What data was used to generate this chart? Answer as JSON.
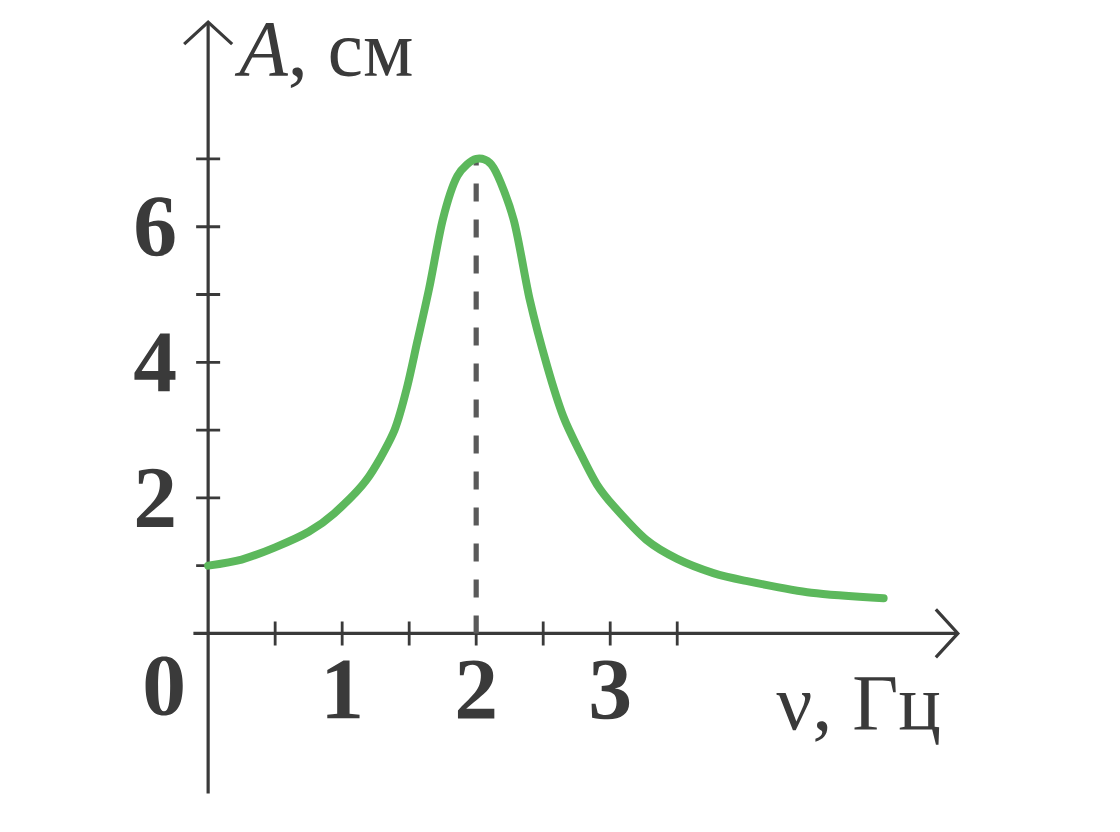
{
  "chart_data": {
    "type": "line",
    "xlabel": "ν, Гц",
    "ylabel": "*A*, см",
    "x": [
      0,
      0.25,
      0.5,
      0.75,
      0.94,
      1.18,
      1.38,
      1.48,
      1.56,
      1.65,
      1.75,
      1.86,
      2.0,
      2.13,
      2.28,
      2.4,
      2.53,
      2.65,
      2.78,
      2.9,
      3.03,
      3.27,
      3.5,
      3.77,
      4.0,
      4.5,
      5.04
    ],
    "values": [
      1.0,
      1.09,
      1.27,
      1.5,
      1.77,
      2.26,
      2.95,
      3.6,
      4.3,
      5.1,
      6.1,
      6.75,
      7.0,
      6.87,
      6.1,
      4.92,
      3.94,
      3.2,
      2.65,
      2.2,
      1.87,
      1.38,
      1.1,
      0.89,
      0.78,
      0.6,
      0.52
    ],
    "color": "#5cb85c",
    "marker": "none",
    "line_style": "solid",
    "xlim": [
      -0.11,
      5.61
    ],
    "ylim": [
      -2.36,
      9.05
    ],
    "xticks": [
      {
        "value": 0,
        "label": "0"
      },
      {
        "value": 0.5,
        "label": null
      },
      1,
      {
        "value": 1.5,
        "label": null
      },
      2,
      {
        "value": 2.5,
        "label": null
      },
      3,
      {
        "value": 3.5,
        "label": null
      }
    ],
    "yticks": [
      {
        "value": 1,
        "label": null
      },
      2,
      {
        "value": 3,
        "label": null
      },
      4,
      {
        "value": 5,
        "label": null
      },
      6,
      {
        "value": 7,
        "label": null
      }
    ],
    "ref_lines": [
      {
        "axis": "x",
        "value": 2,
        "color": "#5a5a5a",
        "line_style": "dashed"
      }
    ]
  }
}
